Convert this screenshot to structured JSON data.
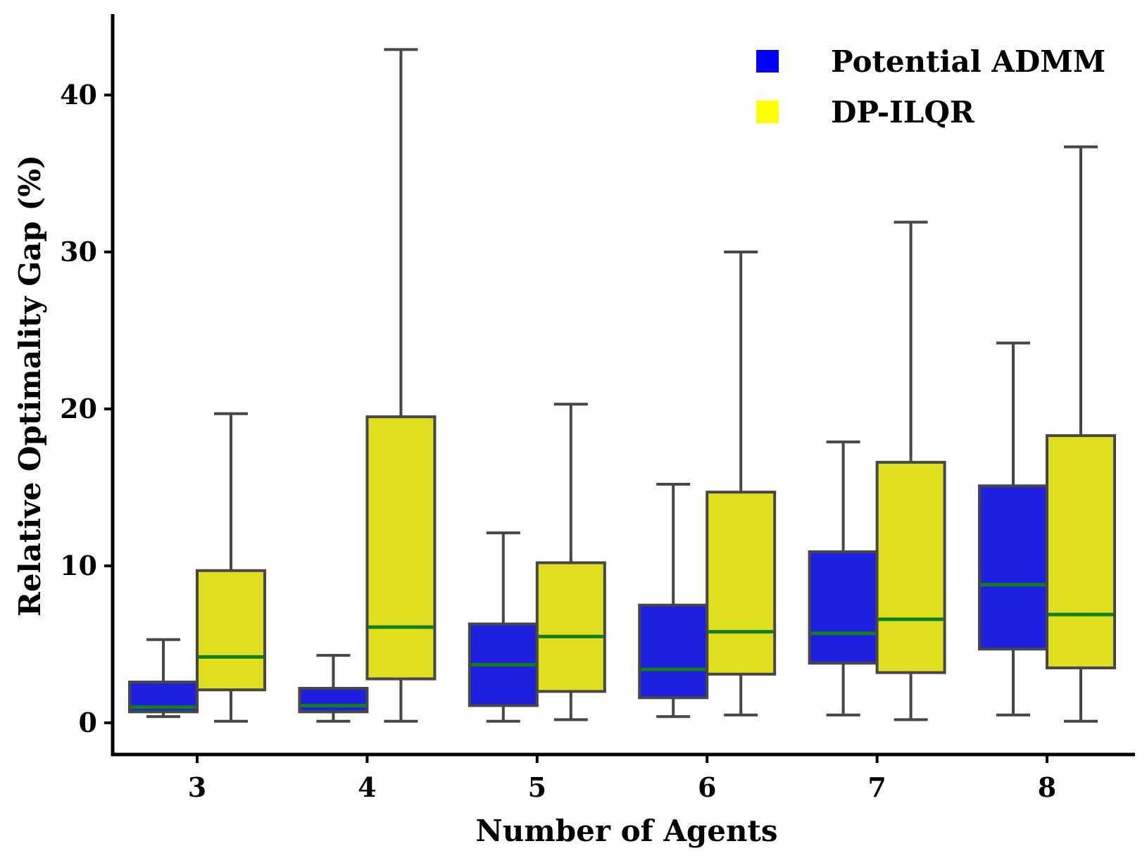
{
  "chart_data": {
    "type": "box",
    "title": "",
    "xlabel": "Number of Agents",
    "ylabel": "Relative Optimality Gap (%)",
    "categories": [
      "3",
      "4",
      "5",
      "6",
      "7",
      "8"
    ],
    "yticks": [
      "0",
      "10",
      "20",
      "30",
      "40"
    ],
    "ylim": [
      -2,
      45
    ],
    "grid": false,
    "legend_position": "top-right",
    "series": [
      {
        "name": "Potential ADMM",
        "color": "#1f1fe0",
        "legend_color": "#0000ff",
        "boxes": [
          {
            "whisker_low": 0.4,
            "q1": 0.7,
            "median": 1.0,
            "q3": 2.6,
            "whisker_high": 5.3
          },
          {
            "whisker_low": 0.1,
            "q1": 0.7,
            "median": 1.1,
            "q3": 2.2,
            "whisker_high": 4.3
          },
          {
            "whisker_low": 0.1,
            "q1": 1.1,
            "median": 3.7,
            "q3": 6.3,
            "whisker_high": 12.1
          },
          {
            "whisker_low": 0.4,
            "q1": 1.6,
            "median": 3.4,
            "q3": 7.5,
            "whisker_high": 15.2
          },
          {
            "whisker_low": 0.5,
            "q1": 3.8,
            "median": 5.7,
            "q3": 10.9,
            "whisker_high": 17.9
          },
          {
            "whisker_low": 0.5,
            "q1": 4.7,
            "median": 8.8,
            "q3": 15.1,
            "whisker_high": 24.2
          }
        ]
      },
      {
        "name": "DP-ILQR",
        "color": "#dfdf20",
        "legend_color": "#ffff00",
        "boxes": [
          {
            "whisker_low": 0.1,
            "q1": 2.1,
            "median": 4.2,
            "q3": 9.7,
            "whisker_high": 19.7
          },
          {
            "whisker_low": 0.1,
            "q1": 2.8,
            "median": 6.1,
            "q3": 19.5,
            "whisker_high": 42.9
          },
          {
            "whisker_low": 0.2,
            "q1": 2.0,
            "median": 5.5,
            "q3": 10.2,
            "whisker_high": 20.3
          },
          {
            "whisker_low": 0.5,
            "q1": 3.1,
            "median": 5.8,
            "q3": 14.7,
            "whisker_high": 30.0
          },
          {
            "whisker_low": 0.2,
            "q1": 3.2,
            "median": 6.6,
            "q3": 16.6,
            "whisker_high": 31.9
          },
          {
            "whisker_low": 0.1,
            "q1": 3.5,
            "median": 6.9,
            "q3": 18.3,
            "whisker_high": 36.7
          }
        ]
      }
    ],
    "styles": {
      "median_color": "#128012",
      "box_edge_color": "#474747",
      "axis_color": "#000000"
    }
  }
}
